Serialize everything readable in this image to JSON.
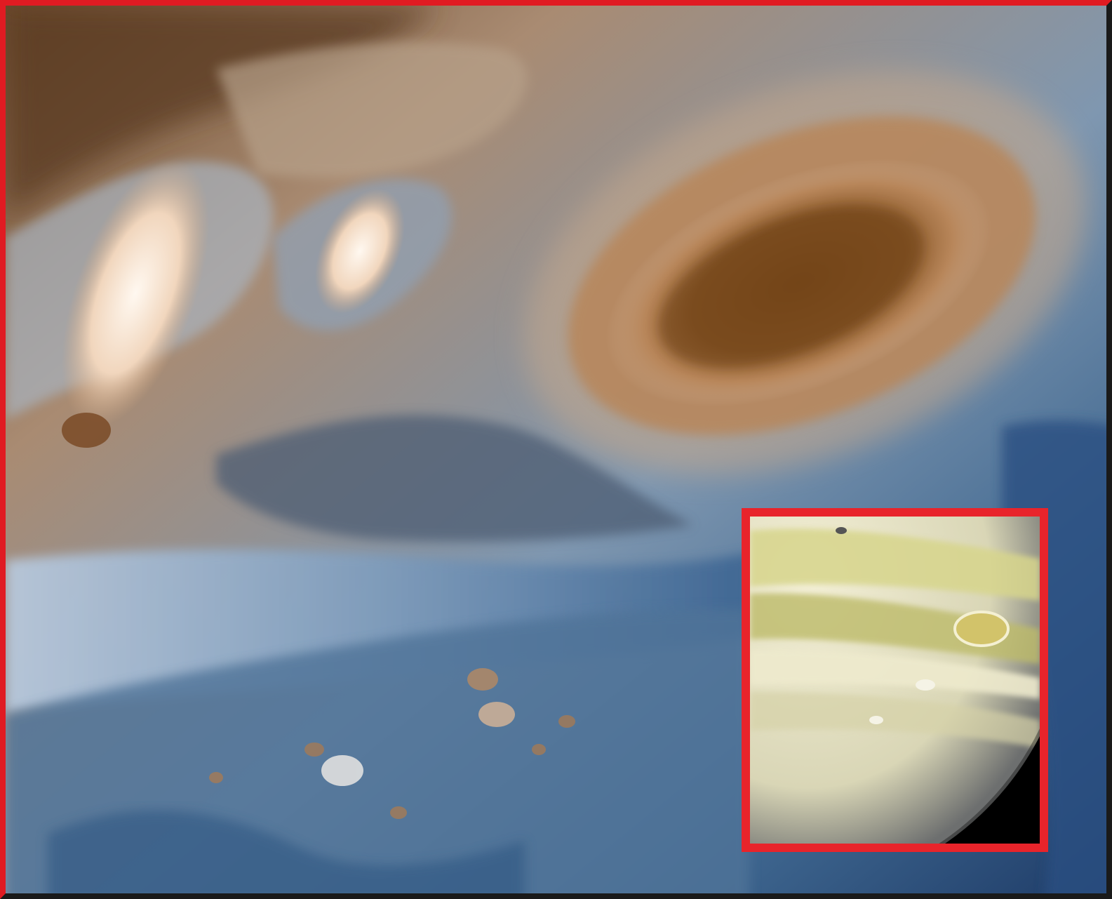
{
  "figure": {
    "main_image": {
      "icon": "jupiter-great-red-spot-closeup-icon",
      "palette": {
        "storm_core": "#7a4a1c",
        "storm_ring": "#b8865a",
        "cloud_blue": "#5f86a8",
        "cloud_cream": "#e9dccb",
        "deep_blue": "#1f3f6b"
      }
    },
    "inset_image": {
      "icon": "jupiter-globe-icon",
      "frame_color": "#e8242b",
      "palette": {
        "band_yellow": "#d7d58c",
        "band_pale": "#eeeacd",
        "background": "#000000"
      }
    }
  }
}
